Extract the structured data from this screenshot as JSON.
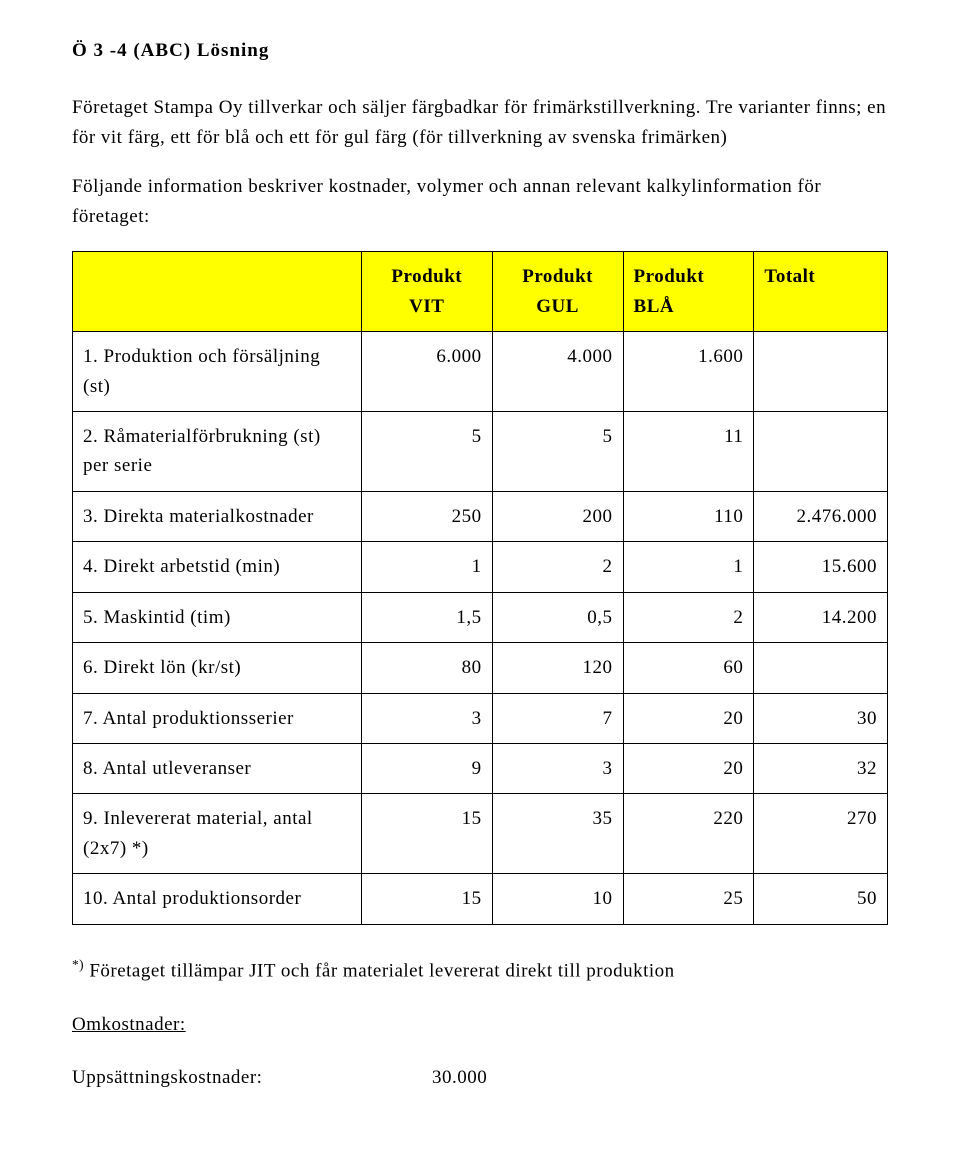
{
  "title": "Ö 3 -4 (ABC) Lösning",
  "para1": "Företaget Stampa Oy tillverkar och säljer färgbadkar för frimärkstillverkning. Tre varianter finns; en för vit färg, ett för blå och ett för gul färg (för tillverkning av svenska frimärken)",
  "para2": "Följande information beskriver kostnader, volymer och annan relevant kalkylinformation för företaget:",
  "table": {
    "header_bg": "#ffff00",
    "columns": [
      {
        "label_top": "",
        "label_bot": ""
      },
      {
        "label_top": "Produkt",
        "label_bot": "VIT"
      },
      {
        "label_top": "Produkt",
        "label_bot": "GUL"
      },
      {
        "label_top": "Produkt BLÅ",
        "label_bot": ""
      },
      {
        "label_top": "Totalt",
        "label_bot": ""
      }
    ],
    "rows": [
      {
        "label": "1. Produktion och försäljning (st)",
        "c1": "6.000",
        "c2": "4.000",
        "c3": "1.600",
        "c4": ""
      },
      {
        "label": "2. Råmaterialförbrukning (st) per serie",
        "c1": "5",
        "c2": "5",
        "c3": "11",
        "c4": ""
      },
      {
        "label": "3. Direkta materialkostnader",
        "c1": "250",
        "c2": "200",
        "c3": "110",
        "c4": "2.476.000"
      },
      {
        "label": "4. Direkt arbetstid (min)",
        "c1": "1",
        "c2": "2",
        "c3": "1",
        "c4": "15.600"
      },
      {
        "label": "5. Maskintid (tim)",
        "c1": "1,5",
        "c2": "0,5",
        "c3": "2",
        "c4": "14.200"
      },
      {
        "label": "6. Direkt lön (kr/st)",
        "c1": "80",
        "c2": "120",
        "c3": "60",
        "c4": ""
      },
      {
        "label": "7. Antal produktionsserier",
        "c1": "3",
        "c2": "7",
        "c3": "20",
        "c4": "30"
      },
      {
        "label": "8. Antal utleveranser",
        "c1": "9",
        "c2": "3",
        "c3": "20",
        "c4": "32"
      },
      {
        "label": "9. Inlevererat material, antal (2x7) *)",
        "c1": "15",
        "c2": "35",
        "c3": "220",
        "c4": "270"
      },
      {
        "label": "10. Antal produktionsorder",
        "c1": "15",
        "c2": "10",
        "c3": "25",
        "c4": "50"
      }
    ]
  },
  "footnote_marker": "*)",
  "footnote_text": " Företaget tillämpar JIT och får materialet levererat direkt till produktion",
  "omk_heading": "Omkostnader:",
  "upp_label": "Uppsättningskostnader:",
  "upp_value": "30.000"
}
